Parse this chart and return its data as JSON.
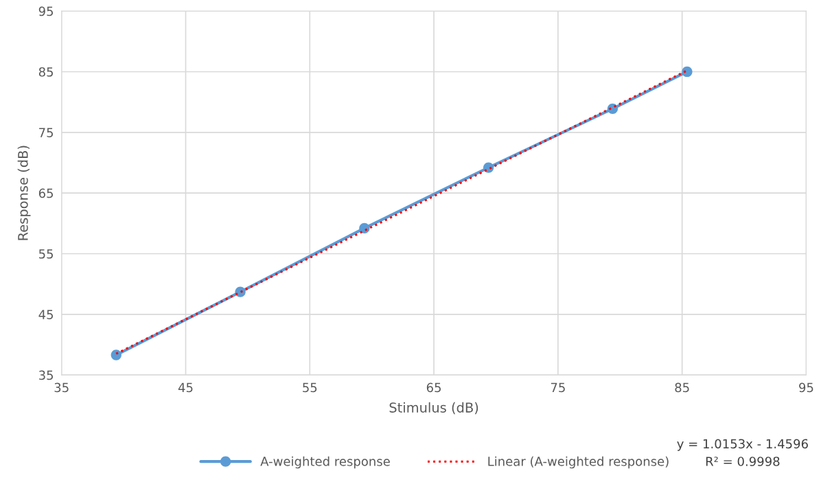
{
  "chart_data": {
    "type": "line",
    "xlabel": "Stimulus (dB)",
    "ylabel": "Response (dB)",
    "xlim": [
      35,
      95
    ],
    "xticks": [
      35,
      45,
      55,
      65,
      75,
      85,
      95
    ],
    "ylim": [
      35,
      95
    ],
    "yticks": [
      35,
      45,
      55,
      65,
      75,
      85,
      95
    ],
    "grid": true,
    "legend": "bottom",
    "series": [
      {
        "name": "A-weighted response",
        "color": "#5b9bd5",
        "marker": "circle",
        "line_style": "solid",
        "x": [
          39.4,
          49.4,
          59.4,
          69.4,
          79.4,
          85.4
        ],
        "values": [
          38.3,
          48.7,
          59.2,
          69.2,
          78.9,
          85.0
        ]
      },
      {
        "name": "Linear (A-weighted response)",
        "color": "#ff0000",
        "marker": "none",
        "line_style": "dotted",
        "x": [
          39.4,
          85.4
        ],
        "values": [
          38.5,
          85.2
        ]
      }
    ],
    "annotations": [
      "y = 1.0153x - 1.4596\nR² = 0.9998"
    ]
  }
}
